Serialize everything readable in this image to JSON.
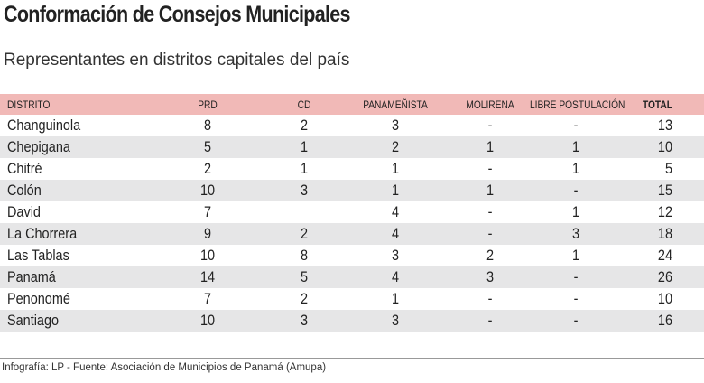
{
  "title": "Conformación de Consejos Municipales",
  "subtitle": "Representantes en distritos capitales del país",
  "footer": "Infografía: LP - Fuente: Asociación de Municipios de Panamá (Amupa)",
  "colors": {
    "header_bg": "#f1b9b7",
    "alt_row_bg": "#e6e6e7"
  },
  "chart_data": {
    "type": "table",
    "columns": [
      "DISTRITO",
      "PRD",
      "CD",
      "PANAMEÑISTA",
      "MOLIRENA",
      "LIBRE POSTULACIÓN",
      "TOTAL"
    ],
    "rows": [
      [
        "Changuinola",
        "8",
        "2",
        "3",
        "-",
        "-",
        "13"
      ],
      [
        "Chepigana",
        "5",
        "1",
        "2",
        "1",
        "1",
        "10"
      ],
      [
        "Chitré",
        "2",
        "1",
        "1",
        "-",
        "1",
        "5"
      ],
      [
        "Colón",
        "10",
        "3",
        "1",
        "1",
        "-",
        "15"
      ],
      [
        "David",
        "7",
        "",
        "4",
        "-",
        "1",
        "12"
      ],
      [
        "La Chorrera",
        "9",
        "2",
        "4",
        "-",
        "3",
        "18"
      ],
      [
        "Las Tablas",
        "10",
        "8",
        "3",
        "2",
        "1",
        "24"
      ],
      [
        "Panamá",
        "14",
        "5",
        "4",
        "3",
        "-",
        "26"
      ],
      [
        "Penonomé",
        "7",
        "2",
        "1",
        "-",
        "-",
        "10"
      ],
      [
        "Santiago",
        "10",
        "3",
        "3",
        "-",
        "-",
        "16"
      ]
    ]
  }
}
